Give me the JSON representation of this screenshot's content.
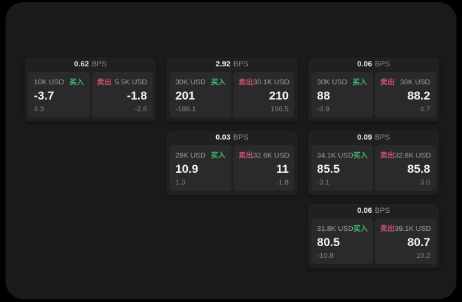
{
  "labels": {
    "bps": "BPS",
    "buy": "买入",
    "sell": "卖出"
  },
  "colors": {
    "background": "#000000",
    "panel": "#1a1a1c",
    "card": "#202023",
    "tile": "#2a2a2d",
    "buy_accent": "#43b76a",
    "sell_accent": "#c9506b",
    "value_text": "#f4f4f5",
    "muted_text": "#9fa0a3"
  },
  "cards": [
    {
      "bps": "0.62",
      "buy": {
        "amount": "10K USD",
        "price": "-3.7",
        "delta": "4.3"
      },
      "sell": {
        "amount": "5.5K USD",
        "price": "-1.8",
        "delta": "-2.6"
      }
    },
    {
      "bps": "2.92",
      "buy": {
        "amount": "30K USD",
        "price": "201",
        "delta": "-188.1"
      },
      "sell": {
        "amount": "30.1K USD",
        "price": "210",
        "delta": "196.5"
      }
    },
    {
      "bps": "0.06",
      "buy": {
        "amount": "30K USD",
        "price": "88",
        "delta": "-4.9"
      },
      "sell": {
        "amount": "30K USD",
        "price": "88.2",
        "delta": "4.7"
      }
    },
    {
      "bps": "0.03",
      "buy": {
        "amount": "28K USD",
        "price": "10.9",
        "delta": "1.3"
      },
      "sell": {
        "amount": "32.6K USD",
        "price": "11",
        "delta": "-1.8"
      }
    },
    {
      "bps": "0.09",
      "buy": {
        "amount": "34.1K USD",
        "price": "85.5",
        "delta": "-3.1"
      },
      "sell": {
        "amount": "32.8K USD",
        "price": "85.8",
        "delta": "3.0"
      }
    },
    {
      "bps": "0.06",
      "buy": {
        "amount": "31.8K USD",
        "price": "80.5",
        "delta": "-10.8"
      },
      "sell": {
        "amount": "39.1K USD",
        "price": "80.7",
        "delta": "10.2"
      }
    }
  ]
}
